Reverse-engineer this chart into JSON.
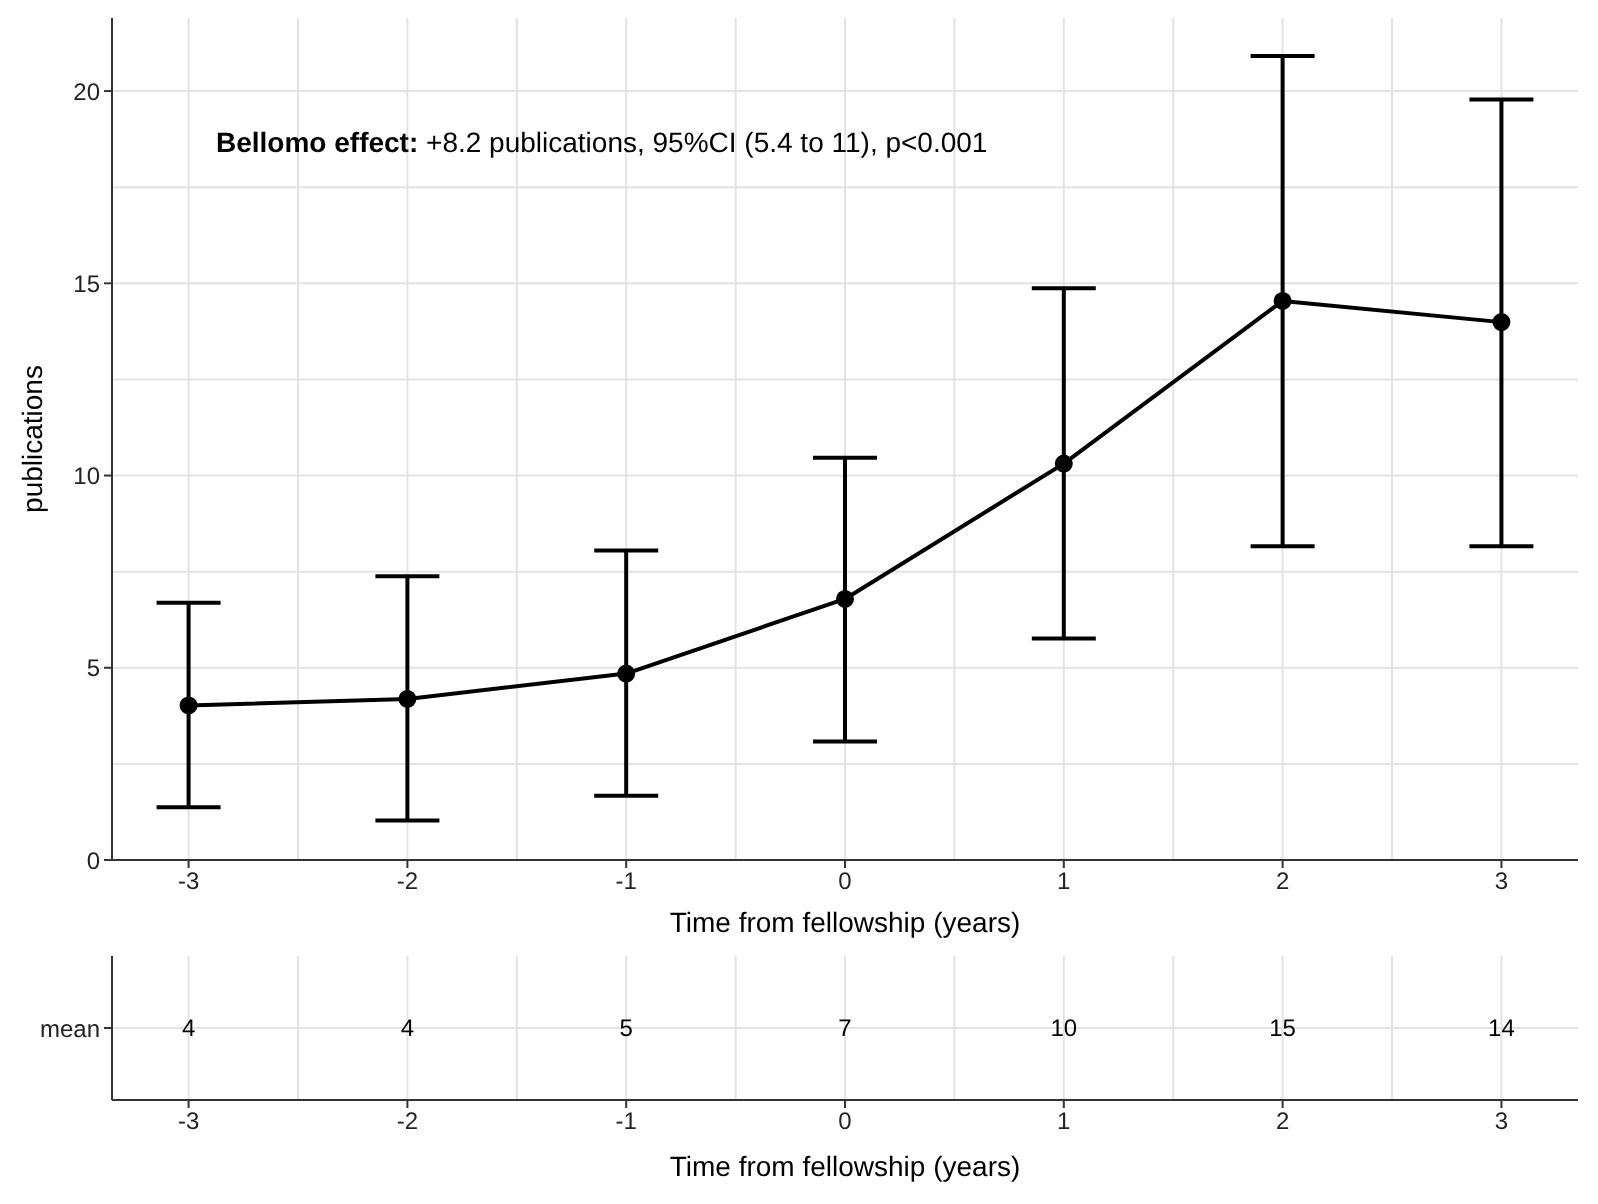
{
  "chart_data": [
    {
      "type": "line",
      "ylabel": "publications",
      "xlabel": "Time from fellowship (years)",
      "x": [
        -3,
        -2,
        -1,
        0,
        1,
        2,
        3
      ],
      "series": [
        {
          "color": "#000000",
          "values": [
            4.02,
            4.19,
            4.85,
            6.79,
            10.31,
            14.54,
            13.99
          ],
          "errors": [
            [
              1.37,
              6.69
            ],
            [
              1.03,
              7.38
            ],
            [
              1.67,
              8.05
            ],
            [
              3.08,
              10.46
            ],
            [
              5.76,
              14.87
            ],
            [
              8.16,
              20.91
            ],
            [
              8.16,
              19.78
            ]
          ]
        }
      ],
      "xlim": [
        -3.35,
        3.35
      ],
      "xticks": [
        -3,
        -2,
        -1,
        0,
        1,
        2,
        3
      ],
      "ylim": [
        0,
        21.9
      ],
      "yticks": [
        0,
        5,
        10,
        15,
        20
      ],
      "grid": true,
      "marker": "circle",
      "line_style": "solid",
      "annotations": [
        "Bellomo effect: +8.2 publications, 95%CI (5.4 to 11), p<0.001"
      ]
    },
    {
      "type": "heatmap",
      "xlabel": "Time from fellowship (years)",
      "categories": [
        "-3",
        "-2",
        "-1",
        "0",
        "1",
        "2",
        "3"
      ],
      "y_categories": [
        "mean"
      ],
      "cells": [
        [
          4,
          4,
          5,
          7,
          10,
          15,
          14
        ]
      ],
      "data_labels": true,
      "grid": true
    }
  ]
}
